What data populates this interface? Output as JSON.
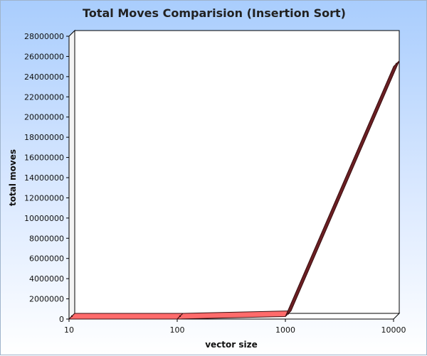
{
  "chart_data": {
    "type": "line",
    "title": "Total Moves Comparision (Insertion Sort)",
    "xlabel": "vector size",
    "ylabel": "total moves",
    "x": [
      "10",
      "100",
      "1000",
      "10000"
    ],
    "x_scale": "log",
    "ylim": [
      0,
      28000000
    ],
    "y_ticks": [
      "0",
      "2000000",
      "4000000",
      "6000000",
      "8000000",
      "10000000",
      "12000000",
      "14000000",
      "16000000",
      "18000000",
      "20000000",
      "22000000",
      "24000000",
      "26000000",
      "28000000"
    ],
    "series": [
      {
        "values": [
          30,
          2500,
          250000,
          25000000
        ]
      }
    ],
    "grid": false,
    "legend": "none",
    "colors": {
      "line_front": "#ff6b6b",
      "line_dark": "#6b1f23",
      "line_edge": "#3a0e10",
      "plot_bg": "#ffffff",
      "axis": "#000000"
    }
  }
}
